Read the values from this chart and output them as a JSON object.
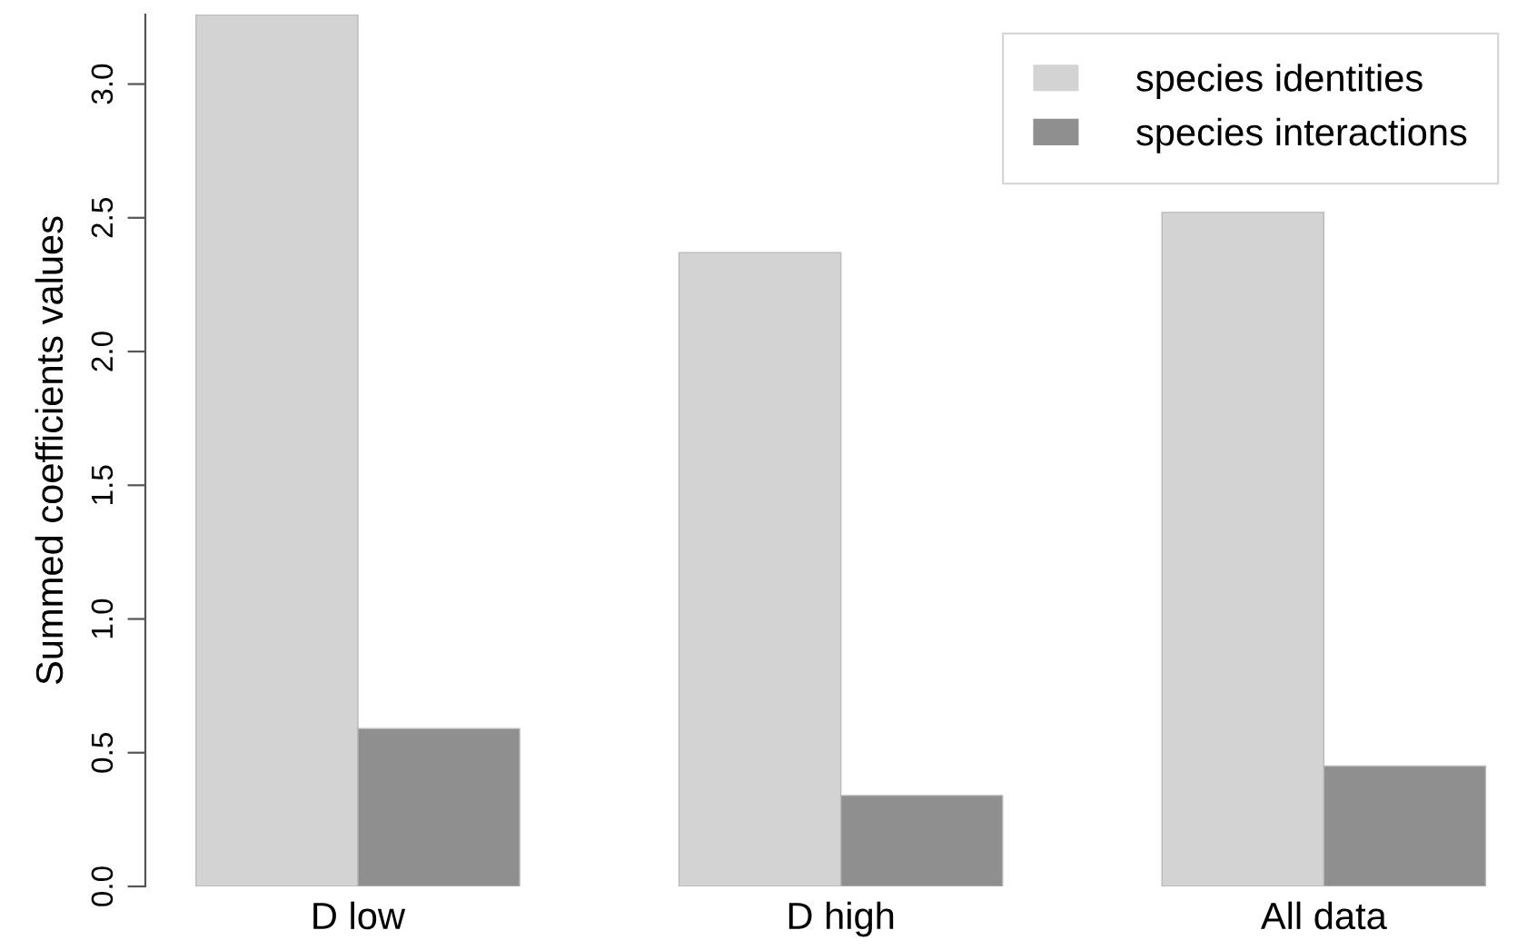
{
  "chart_data": {
    "type": "bar",
    "ylabel": "Summed coefficients values",
    "categories": [
      "D low",
      "D high",
      "All data"
    ],
    "series": [
      {
        "name": "species identities",
        "color": "#d3d3d3",
        "values": [
          3.26,
          2.37,
          2.52
        ]
      },
      {
        "name": "species interactions",
        "color": "#8f8f8f",
        "values": [
          0.59,
          0.34,
          0.45
        ]
      }
    ],
    "ylim": [
      0,
      3.26
    ],
    "yticks": [
      {
        "value": 0,
        "label": "0.0"
      },
      0.5,
      {
        "value": 1,
        "label": "1.0"
      },
      1.5,
      {
        "value": 2,
        "label": "2.0"
      },
      2.5,
      {
        "value": 3,
        "label": "3.0"
      }
    ],
    "legend": "top right",
    "grid": false
  }
}
